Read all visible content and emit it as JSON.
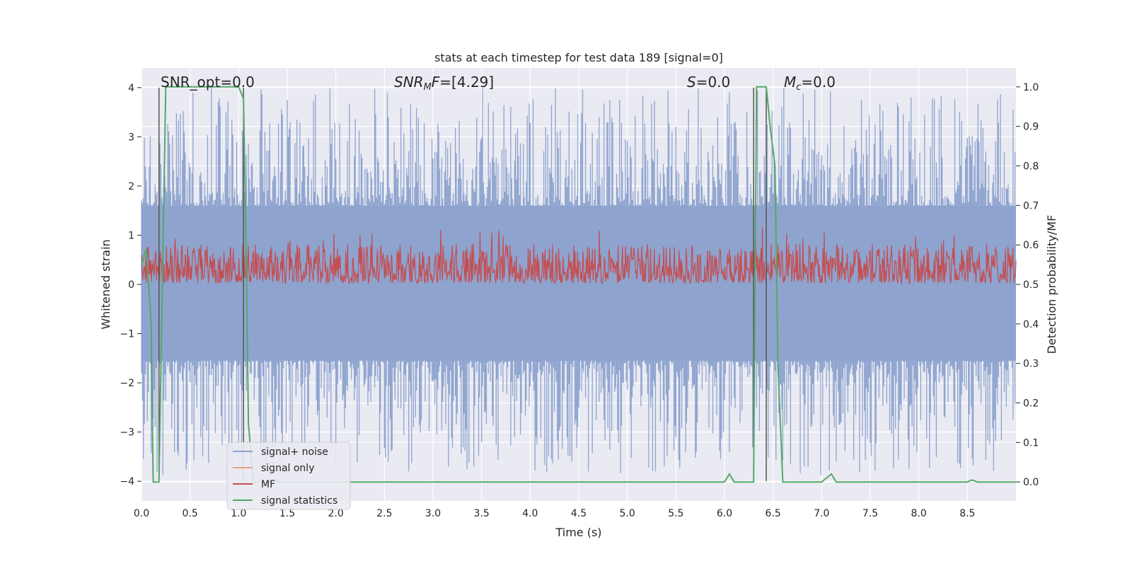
{
  "chart_data": {
    "type": "line",
    "title": "stats at each timestep for test data 189 [signal=0]",
    "xlabel": "Time (s)",
    "ylabel": "Whitened strain",
    "y2label": "Detection probability/MF",
    "xlim": [
      0,
      9.0
    ],
    "ylim": [
      -4.4,
      4.4
    ],
    "y2lim": [
      -0.048,
      1.048
    ],
    "x_ticks": [
      0.0,
      0.5,
      1.0,
      1.5,
      2.0,
      2.5,
      3.0,
      3.5,
      4.0,
      4.5,
      5.0,
      5.5,
      6.0,
      6.5,
      7.0,
      7.5,
      8.0,
      8.5
    ],
    "x_tick_labels": [
      "0.0",
      "0.5",
      "1.0",
      "1.5",
      "2.0",
      "2.5",
      "3.0",
      "3.5",
      "4.0",
      "4.5",
      "5.0",
      "5.5",
      "6.0",
      "6.5",
      "7.0",
      "7.5",
      "8.0",
      "8.5"
    ],
    "y_ticks": [
      -4,
      -3,
      -2,
      -1,
      0,
      1,
      2,
      3,
      4
    ],
    "y_tick_labels": [
      "−4",
      "−3",
      "−2",
      "−1",
      "0",
      "1",
      "2",
      "3",
      "4"
    ],
    "y2_ticks": [
      0.0,
      0.1,
      0.2,
      0.3,
      0.4,
      0.5,
      0.6,
      0.7,
      0.8,
      0.9,
      1.0
    ],
    "y2_tick_labels": [
      "0.0",
      "0.1",
      "0.2",
      "0.3",
      "0.4",
      "0.5",
      "0.6",
      "0.7",
      "0.8",
      "0.9",
      "1.0"
    ],
    "grid": true,
    "legend_position": "lower-left",
    "annotations": [
      {
        "text": "SNR_opt=0.0",
        "x": 0.2,
        "y": 4.1
      },
      {
        "text": "SNR_MF=[4.29]",
        "x": 2.6,
        "y": 4.1
      },
      {
        "text": "S=0.0",
        "x": 5.6,
        "y": 4.1
      },
      {
        "text": "M_c=0.0",
        "x": 6.6,
        "y": 4.1
      }
    ],
    "vertical_markers": [
      {
        "x": 0.18,
        "y_top": 4.0,
        "y_bottom": -4.0
      },
      {
        "x": 1.05,
        "y_top": 4.0,
        "y_bottom": -4.0
      },
      {
        "x": 6.3,
        "y_top": 4.0,
        "y_bottom": -4.0
      },
      {
        "x": 6.43,
        "y_top": 4.0,
        "y_bottom": -4.0
      }
    ],
    "series": [
      {
        "name": "signal+ noise",
        "color": "#8ea4cf",
        "axis": "left",
        "description": "whitened strain noise, roughly ±1.5 band with spikes to ±3.5",
        "band": [
          -1.55,
          1.6
        ],
        "spike_extent": [
          -3.9,
          4.0
        ]
      },
      {
        "name": "signal only",
        "color": "#e8a07f",
        "axis": "left",
        "values": []
      },
      {
        "name": "MF",
        "color": "#c44e52",
        "axis": "right",
        "band": [
          0.5,
          0.6
        ]
      },
      {
        "name": "signal statistics",
        "color": "#55a868",
        "axis": "right",
        "x": [
          0.0,
          0.05,
          0.1,
          0.12,
          0.18,
          0.25,
          0.3,
          1.0,
          1.05,
          1.08,
          1.1,
          1.15,
          2.0,
          3.0,
          4.0,
          5.0,
          5.9,
          6.0,
          6.05,
          6.1,
          6.15,
          6.3,
          6.33,
          6.37,
          6.43,
          6.47,
          6.52,
          6.55,
          6.6,
          6.65,
          7.0,
          7.05,
          7.1,
          7.15,
          8.0,
          8.5,
          8.55,
          8.6,
          9.0
        ],
        "y": [
          0.55,
          0.59,
          0.4,
          0.0,
          0.0,
          1.0,
          1.0,
          1.0,
          0.97,
          0.55,
          0.15,
          0.0,
          0.0,
          0.0,
          0.0,
          0.0,
          0.0,
          0.0,
          0.02,
          0.0,
          0.0,
          0.0,
          1.0,
          1.0,
          1.0,
          0.9,
          0.8,
          0.3,
          0.0,
          0.0,
          0.0,
          0.01,
          0.02,
          0.0,
          0.0,
          0.0,
          0.005,
          0.0,
          0.0
        ]
      }
    ]
  }
}
